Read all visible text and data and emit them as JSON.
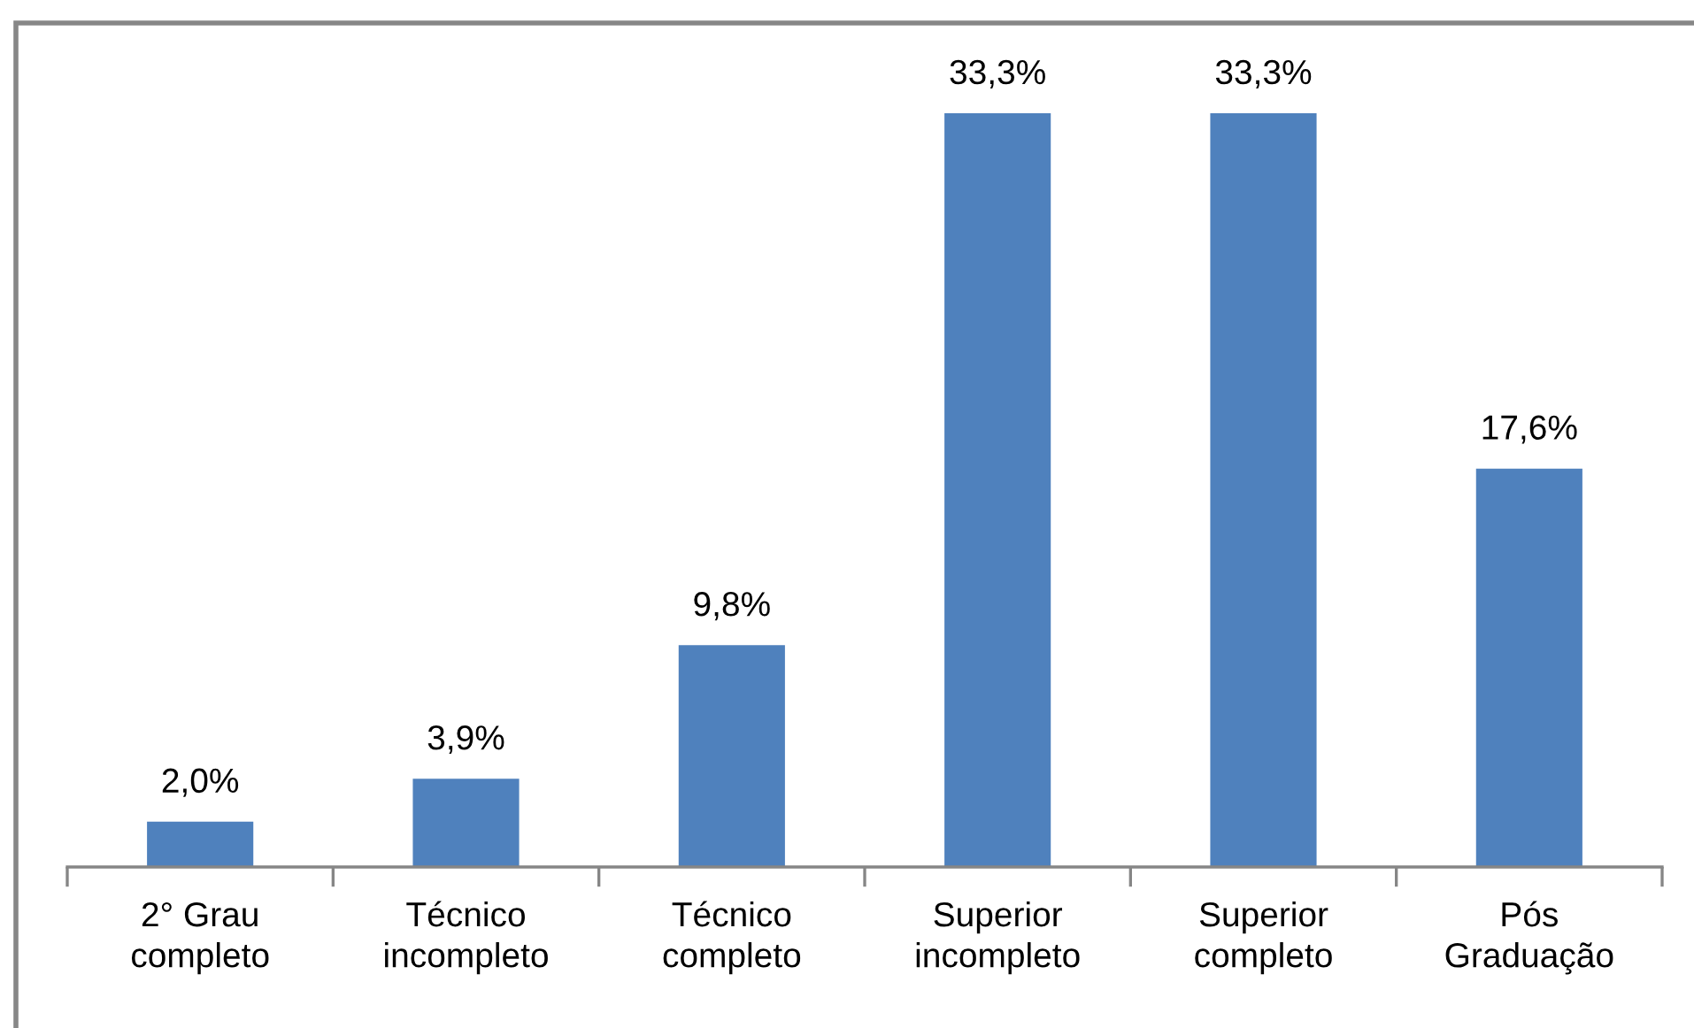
{
  "chart_data": {
    "type": "bar",
    "categories": [
      "2° Grau\ncompleto",
      "Técnico\nincompleto",
      "Técnico\ncompleto",
      "Superior\nincompleto",
      "Superior\ncompleto",
      "Pós\nGraduação"
    ],
    "values": [
      2.0,
      3.9,
      9.8,
      33.3,
      33.3,
      17.6
    ],
    "value_labels": [
      "2,0%",
      "3,9%",
      "9,8%",
      "33,3%",
      "33,3%",
      "17,6%"
    ],
    "color": "#4f81bd",
    "tick_labels": "x"
  }
}
